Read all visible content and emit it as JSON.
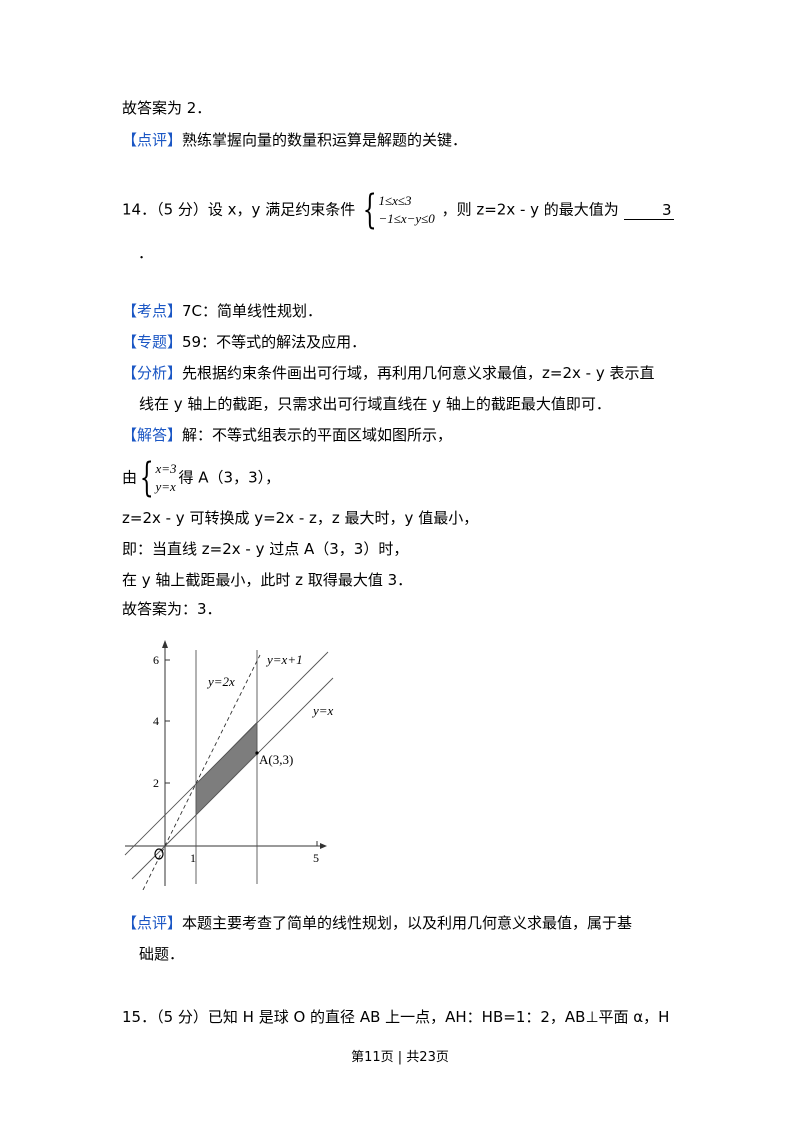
{
  "prev_answer": "故答案为 2．",
  "prev_review": {
    "tag": "【点评】",
    "text": "熟练掌握向量的数量积运算是解题的关键．"
  },
  "q14": {
    "number": "14．（5 分）设 x，y 满足约束条件",
    "cond1": "1≤x≤3",
    "cond2": "−1≤x−y≤0",
    "after": "，则 z=2x - y 的最大值为",
    "answer": "3",
    "period": "．"
  },
  "kaodian": {
    "tag": "【考点】",
    "text": "7C：简单线性规划．"
  },
  "zhuanti": {
    "tag": "【专题】",
    "text": "59：不等式的解法及应用．"
  },
  "fenxi": {
    "tag": "【分析】",
    "line1": "先根据约束条件画出可行域，再利用几何意义求最值，z=2x - y 表示直",
    "line2": "线在 y 轴上的截距，只需求出可行域直线在 y 轴上的截距最大值即可．"
  },
  "jieda": {
    "tag": "【解答】",
    "text": "解：不等式组表示的平面区域如图所示，"
  },
  "solve": {
    "pre": "由",
    "eq1": "x=3",
    "eq2": "y=x",
    "post": "得 A（3，3），"
  },
  "steps": [
    "z=2x - y 可转换成 y=2x - z，z 最大时，y 值最小，",
    "即：当直线 z=2x - y 过点 A（3，3）时，",
    "在 y 轴上截距最小，此时 z 取得最大值 3．",
    "故答案为：3．"
  ],
  "graph": {
    "labels": {
      "y2x": "y=2x",
      "yx1": "y=x+1",
      "yx": "y=x",
      "A": "A(3,3)",
      "origin": "O"
    },
    "y_ticks": [
      "6",
      "4",
      "2"
    ],
    "x_ticks": [
      "1",
      "5"
    ]
  },
  "review14": {
    "tag": "【点评】",
    "line1": "本题主要考查了简单的线性规划，以及利用几何意义求最值，属于基",
    "line2": "础题．"
  },
  "q15": "15．（5 分）已知 H 是球 O 的直径 AB 上一点，AH：HB=1：2，AB⊥平面 α，H",
  "footer": "第11页 | 共23页"
}
